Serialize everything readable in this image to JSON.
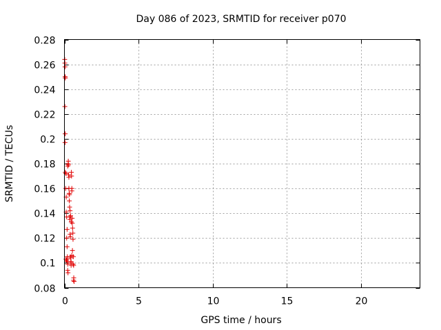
{
  "chart_data": {
    "type": "scatter",
    "title": "Day 086 of 2023, SRMTID for receiver p070",
    "xlabel": "GPS time / hours",
    "ylabel": "SRMTID / TECUs",
    "xlim": [
      0,
      24
    ],
    "ylim": [
      0.08,
      0.28
    ],
    "xticks": [
      0,
      5,
      10,
      15,
      20
    ],
    "xtick_labels": [
      "0",
      "5",
      "10",
      "15",
      "20"
    ],
    "yticks": [
      0.08,
      0.1,
      0.12,
      0.14,
      0.16,
      0.18,
      0.2,
      0.22,
      0.24,
      0.26,
      0.28
    ],
    "ytick_labels": [
      "0.08",
      "0.1",
      "0.12",
      "0.14",
      "0.16",
      "0.18",
      "0.2",
      "0.22",
      "0.24",
      "0.26",
      "0.28"
    ],
    "grid": true,
    "marker": "+",
    "color": "#e00000",
    "series": [
      {
        "name": "p070",
        "x": [
          0.02,
          0.03,
          0.04,
          0.05,
          0.06,
          0.03,
          0.05,
          0.04,
          0.06,
          0.08,
          0.1,
          0.12,
          0.12,
          0.15,
          0.15,
          0.18,
          0.18,
          0.2,
          0.2,
          0.22,
          0.22,
          0.24,
          0.25,
          0.27,
          0.28,
          0.3,
          0.3,
          0.32,
          0.33,
          0.35,
          0.35,
          0.37,
          0.38,
          0.4,
          0.4,
          0.42,
          0.43,
          0.45,
          0.45,
          0.47,
          0.48,
          0.5,
          0.5,
          0.52,
          0.53,
          0.55,
          0.57,
          0.58,
          0.6,
          0.62,
          0.63,
          0.65,
          0.1,
          0.14,
          0.18,
          0.22,
          0.26,
          0.3,
          0.34,
          0.38,
          0.42,
          0.46,
          0.5,
          0.54,
          0.58,
          0.62
        ],
        "y": [
          0.264,
          0.261,
          0.258,
          0.25,
          0.249,
          0.226,
          0.204,
          0.197,
          0.173,
          0.16,
          0.172,
          0.153,
          0.141,
          0.137,
          0.12,
          0.127,
          0.113,
          0.105,
          0.101,
          0.099,
          0.094,
          0.092,
          0.18,
          0.179,
          0.171,
          0.169,
          0.16,
          0.156,
          0.15,
          0.145,
          0.137,
          0.135,
          0.123,
          0.121,
          0.105,
          0.104,
          0.1,
          0.101,
          0.098,
          0.173,
          0.17,
          0.16,
          0.158,
          0.136,
          0.132,
          0.128,
          0.124,
          0.119,
          0.105,
          0.098,
          0.088,
          0.085,
          0.103,
          0.102,
          0.103,
          0.178,
          0.182,
          0.16,
          0.155,
          0.142,
          0.138,
          0.133,
          0.106,
          0.11,
          0.099,
          0.086
        ]
      }
    ]
  }
}
